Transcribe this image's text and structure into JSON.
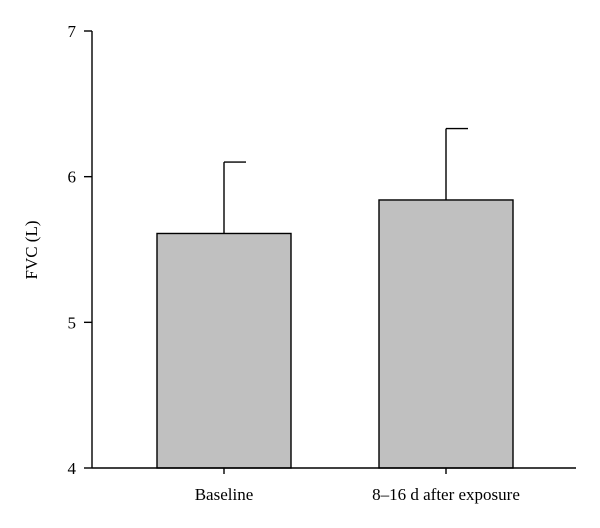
{
  "chart_data": {
    "type": "bar",
    "categories": [
      "Baseline",
      "8–16 d after exposure"
    ],
    "values": [
      5.61,
      5.84
    ],
    "error_upper": [
      6.1,
      6.33
    ],
    "ylabel": "FVC (L)",
    "xlabel": "",
    "title": "",
    "ylim": [
      4,
      7
    ],
    "yticks": [
      4,
      5,
      6,
      7
    ],
    "bar_color": "#c0c0c0",
    "grid": false
  }
}
